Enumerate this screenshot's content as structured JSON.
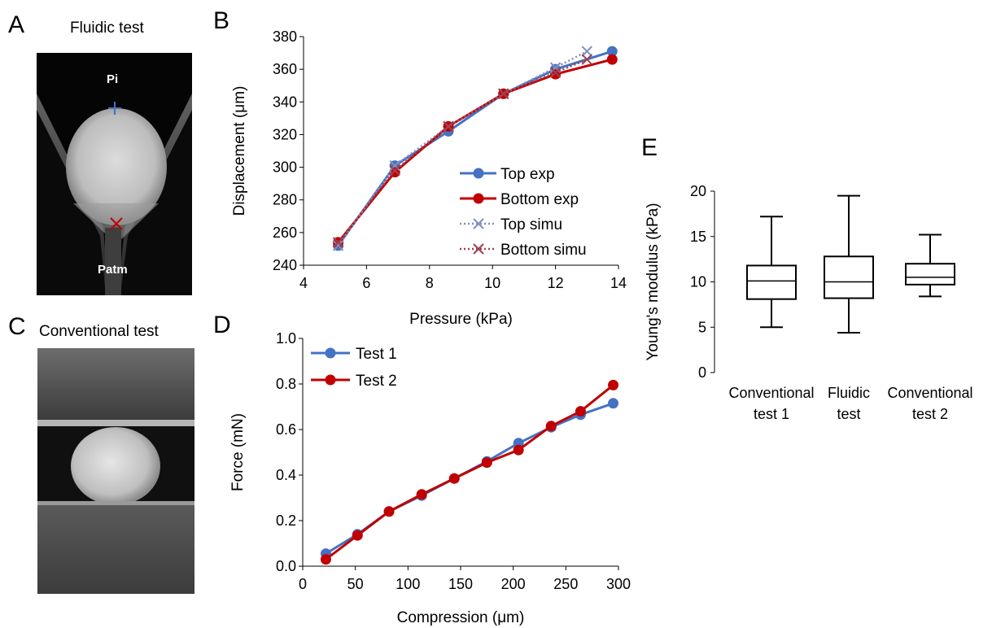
{
  "panels": {
    "A": {
      "letter": "A",
      "title": "Fluidic test",
      "label_top": "Pi",
      "label_bottom": "Patm"
    },
    "B": {
      "letter": "B"
    },
    "C": {
      "letter": "C",
      "title": "Conventional test"
    },
    "D": {
      "letter": "D"
    },
    "E": {
      "letter": "E"
    }
  },
  "colors": {
    "blue": "#4472C4",
    "red": "#C00000",
    "blue_dotted": "#7F8FC0",
    "red_dotted": "#A04050"
  },
  "chart_data": [
    {
      "id": "B",
      "type": "line",
      "xlabel": "Pressure (kPa)",
      "ylabel": "Displacement (μm)",
      "xlim": [
        4,
        14
      ],
      "ylim": [
        240,
        380
      ],
      "xticks": [
        4,
        6,
        8,
        10,
        12,
        14
      ],
      "yticks": [
        240,
        260,
        280,
        300,
        320,
        340,
        360,
        380
      ],
      "legend_position": "right",
      "series": [
        {
          "name": "Top exp",
          "style": "solid-circle",
          "color": "#4472C4",
          "x": [
            5.1,
            6.9,
            8.6,
            10.35,
            12.0,
            13.8
          ],
          "y": [
            252,
            301,
            322,
            345,
            360,
            371
          ]
        },
        {
          "name": "Bottom exp",
          "style": "solid-circle",
          "color": "#C00000",
          "x": [
            5.1,
            6.9,
            8.6,
            10.35,
            12.0,
            13.8
          ],
          "y": [
            254,
            297,
            325,
            345,
            357,
            366
          ]
        },
        {
          "name": "Top simu",
          "style": "dotted-x",
          "color": "#7F8FC0",
          "x": [
            5.1,
            6.9,
            8.6,
            10.35,
            12.0,
            13.0
          ],
          "y": [
            252,
            301,
            325,
            345,
            361,
            371
          ]
        },
        {
          "name": "Bottom simu",
          "style": "dotted-x",
          "color": "#A04050",
          "x": [
            5.1,
            6.9,
            8.6,
            10.35,
            12.0,
            13.0
          ],
          "y": [
            254,
            298,
            325,
            345,
            358,
            366
          ]
        }
      ]
    },
    {
      "id": "D",
      "type": "line",
      "xlabel": "Compression (μm)",
      "ylabel": "Force  (mN)",
      "xlim": [
        0,
        300
      ],
      "ylim": [
        0,
        1.0
      ],
      "xticks": [
        0,
        50,
        100,
        150,
        200,
        250,
        300
      ],
      "yticks": [
        "0.0",
        "0.2",
        "0.4",
        "0.6",
        "0.8",
        "1.0"
      ],
      "legend_position": "top-left",
      "series": [
        {
          "name": "Test 1",
          "color": "#4472C4",
          "x": [
            22,
            52,
            82,
            113,
            144,
            175,
            205,
            236,
            264,
            295
          ],
          "y": [
            0.055,
            0.14,
            0.24,
            0.31,
            0.385,
            0.46,
            0.54,
            0.61,
            0.665,
            0.715
          ]
        },
        {
          "name": "Test 2",
          "color": "#C00000",
          "x": [
            22,
            52,
            82,
            113,
            144,
            175,
            205,
            236,
            264,
            295
          ],
          "y": [
            0.03,
            0.135,
            0.24,
            0.315,
            0.385,
            0.455,
            0.51,
            0.615,
            0.68,
            0.795
          ]
        }
      ]
    },
    {
      "id": "E",
      "type": "boxplot",
      "ylabel": "Young's modulus (kPa)",
      "ylim": [
        0,
        20
      ],
      "yticks": [
        0,
        5,
        10,
        15,
        20
      ],
      "categories": [
        {
          "line1": "Conventional",
          "line2": "test  1",
          "min": 5.0,
          "q1": 8.1,
          "median": 10.1,
          "q3": 11.8,
          "max": 17.2
        },
        {
          "line1": "Fluidic",
          "line2": "test",
          "min": 4.4,
          "q1": 8.2,
          "median": 10.0,
          "q3": 12.8,
          "max": 19.5
        },
        {
          "line1": "Conventional",
          "line2": "test  2",
          "min": 8.4,
          "q1": 9.7,
          "median": 10.5,
          "q3": 12.0,
          "max": 15.2
        }
      ]
    }
  ]
}
